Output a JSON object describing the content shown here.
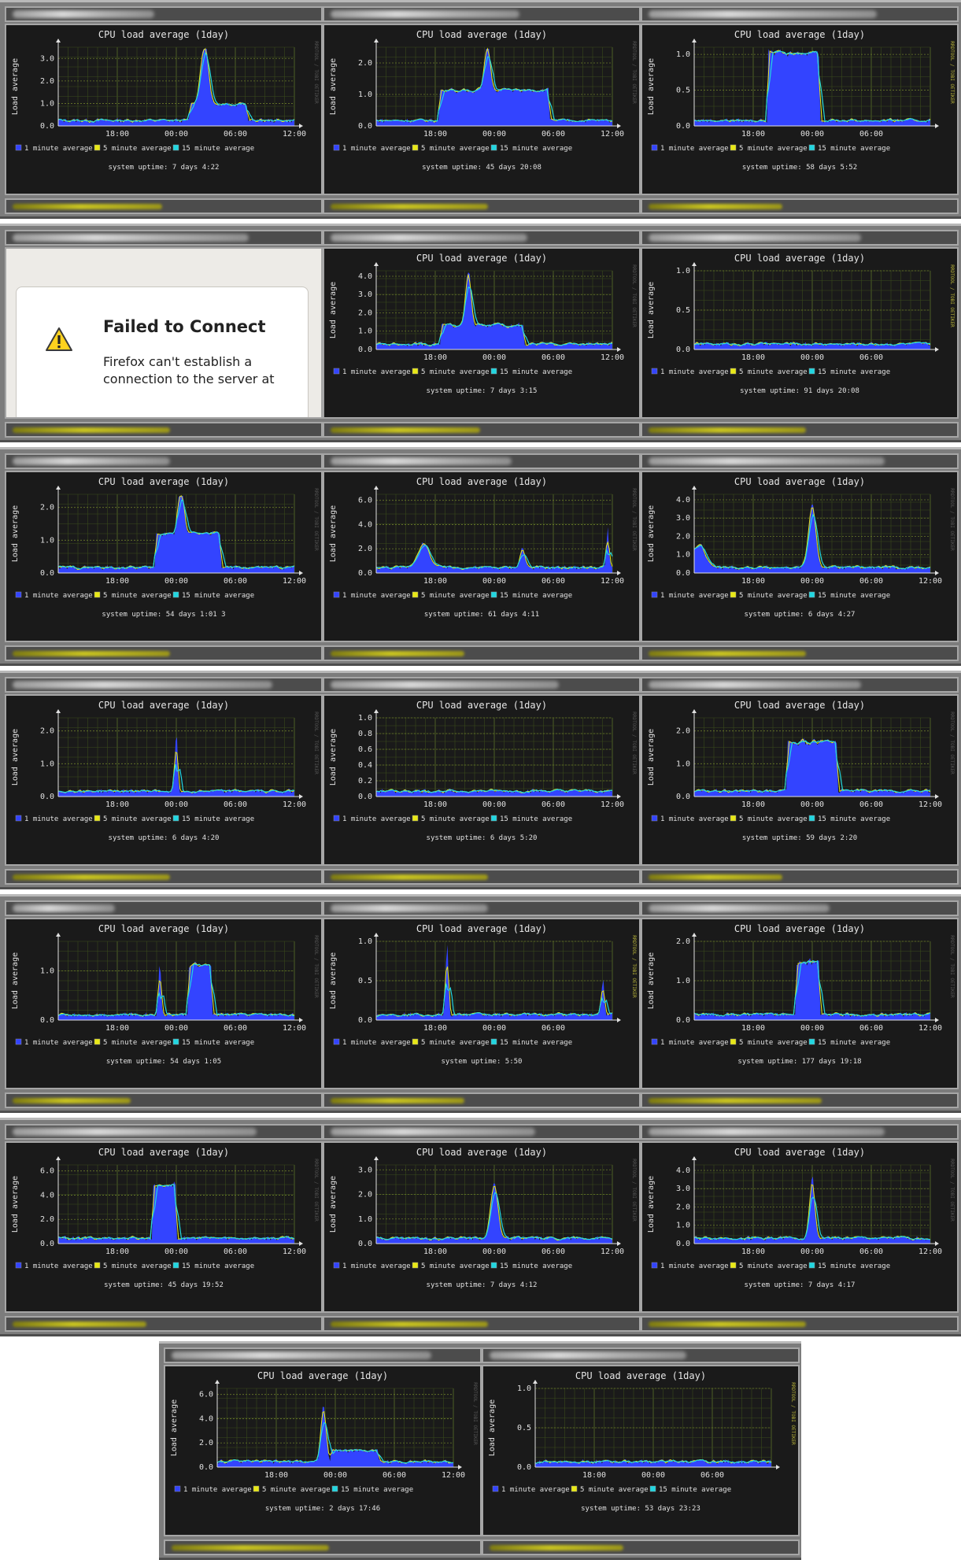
{
  "legend": {
    "items": [
      {
        "label": "1 minute average",
        "color": "#3344ff"
      },
      {
        "label": "5 minute average",
        "color": "#e8e817"
      },
      {
        "label": "15 minute average",
        "color": "#22d6e0"
      }
    ]
  },
  "chart_title": "CPU load average  (1day)",
  "y_axis_label": "Load average",
  "credit_text": "RRDTOOL / TOBI OETIKER",
  "x_ticks": [
    "18:00",
    "00:00",
    "06:00",
    "12:00"
  ],
  "uptime_prefix": "system uptime:",
  "error_page": {
    "title": "Failed to Connect",
    "description": "Firefox can't establish a connection to the server at",
    "icon": "warning-triangle-icon"
  },
  "panels": [
    {
      "row": 0,
      "col": 0,
      "uptime": "7 days  4:22",
      "ylim": [
        0,
        3.5
      ],
      "yticks": [
        "0.0",
        "1.0",
        "2.0",
        "3.0"
      ]
    },
    {
      "row": 0,
      "col": 1,
      "uptime": "45 days 20:08",
      "ylim": [
        0,
        2.5
      ],
      "yticks": [
        "0.0",
        "1.0",
        "2.0"
      ]
    },
    {
      "row": 0,
      "col": 2,
      "uptime": "58 days  5:52",
      "ylim": [
        0,
        1.1
      ],
      "yticks": [
        "0.0",
        "0.5",
        "1.0"
      ],
      "ticks3": true
    },
    {
      "row": 1,
      "col": 0,
      "error": true
    },
    {
      "row": 1,
      "col": 1,
      "uptime": "7 days  3:15",
      "ylim": [
        0,
        4.3
      ],
      "yticks": [
        "0.0",
        "1.0",
        "2.0",
        "3.0",
        "4.0"
      ]
    },
    {
      "row": 1,
      "col": 2,
      "uptime": "91 days 20:08",
      "ylim": [
        0,
        1.0
      ],
      "yticks": [
        "0.0",
        "0.5",
        "1.0"
      ],
      "ticks3": true
    },
    {
      "row": 2,
      "col": 0,
      "uptime": "54 days  1:01 3",
      "ylim": [
        0,
        2.4
      ],
      "yticks": [
        "0.0",
        "1.0",
        "2.0"
      ]
    },
    {
      "row": 2,
      "col": 1,
      "uptime": "61 days  4:11",
      "ylim": [
        0,
        6.5
      ],
      "yticks": [
        "0.0",
        "2.0",
        "4.0",
        "6.0"
      ]
    },
    {
      "row": 2,
      "col": 2,
      "uptime": "6 days  4:27",
      "ylim": [
        0,
        4.3
      ],
      "yticks": [
        "0.0",
        "1.0",
        "2.0",
        "3.0",
        "4.0"
      ]
    },
    {
      "row": 3,
      "col": 0,
      "uptime": "6 days  4:20",
      "ylim": [
        0,
        2.4
      ],
      "yticks": [
        "0.0",
        "1.0",
        "2.0"
      ]
    },
    {
      "row": 3,
      "col": 1,
      "uptime": "6 days  5:20",
      "ylim": [
        0,
        1.0
      ],
      "yticks": [
        "0.0",
        "0.2",
        "0.4",
        "0.6",
        "0.8",
        "1.0"
      ]
    },
    {
      "row": 3,
      "col": 2,
      "uptime": "59 days  2:20",
      "ylim": [
        0,
        2.4
      ],
      "yticks": [
        "0.0",
        "1.0",
        "2.0"
      ]
    },
    {
      "row": 4,
      "col": 0,
      "uptime": "54 days  1:05",
      "ylim": [
        0,
        1.6
      ],
      "yticks": [
        "0.0",
        "1.0"
      ]
    },
    {
      "row": 4,
      "col": 1,
      "uptime": "5:50",
      "ylim": [
        0,
        1.0
      ],
      "yticks": [
        "0.0",
        "0.5",
        "1.0"
      ],
      "ticks3": true
    },
    {
      "row": 4,
      "col": 2,
      "uptime": "177 days 19:18",
      "ylim": [
        0,
        2.0
      ],
      "yticks": [
        "0.0",
        "1.0",
        "2.0"
      ]
    },
    {
      "row": 5,
      "col": 0,
      "uptime": "45 days 19:52",
      "ylim": [
        0,
        6.5
      ],
      "yticks": [
        "0.0",
        "2.0",
        "4.0",
        "6.0"
      ]
    },
    {
      "row": 5,
      "col": 1,
      "uptime": "7 days  4:12",
      "ylim": [
        0,
        3.2
      ],
      "yticks": [
        "0.0",
        "1.0",
        "2.0",
        "3.0"
      ]
    },
    {
      "row": 5,
      "col": 2,
      "uptime": "7 days  4:17",
      "ylim": [
        0,
        4.3
      ],
      "yticks": [
        "0.0",
        "1.0",
        "2.0",
        "3.0",
        "4.0"
      ]
    },
    {
      "row": 6,
      "col": 0,
      "uptime": "2 days 17:46",
      "ylim": [
        0,
        6.5
      ],
      "yticks": [
        "0.0",
        "2.0",
        "4.0",
        "6.0"
      ]
    },
    {
      "row": 6,
      "col": 1,
      "uptime": "53 days 23:23",
      "ylim": [
        0,
        1.0
      ],
      "yticks": [
        "0.0",
        "0.5",
        "1.0"
      ],
      "ticks3": true
    }
  ]
}
